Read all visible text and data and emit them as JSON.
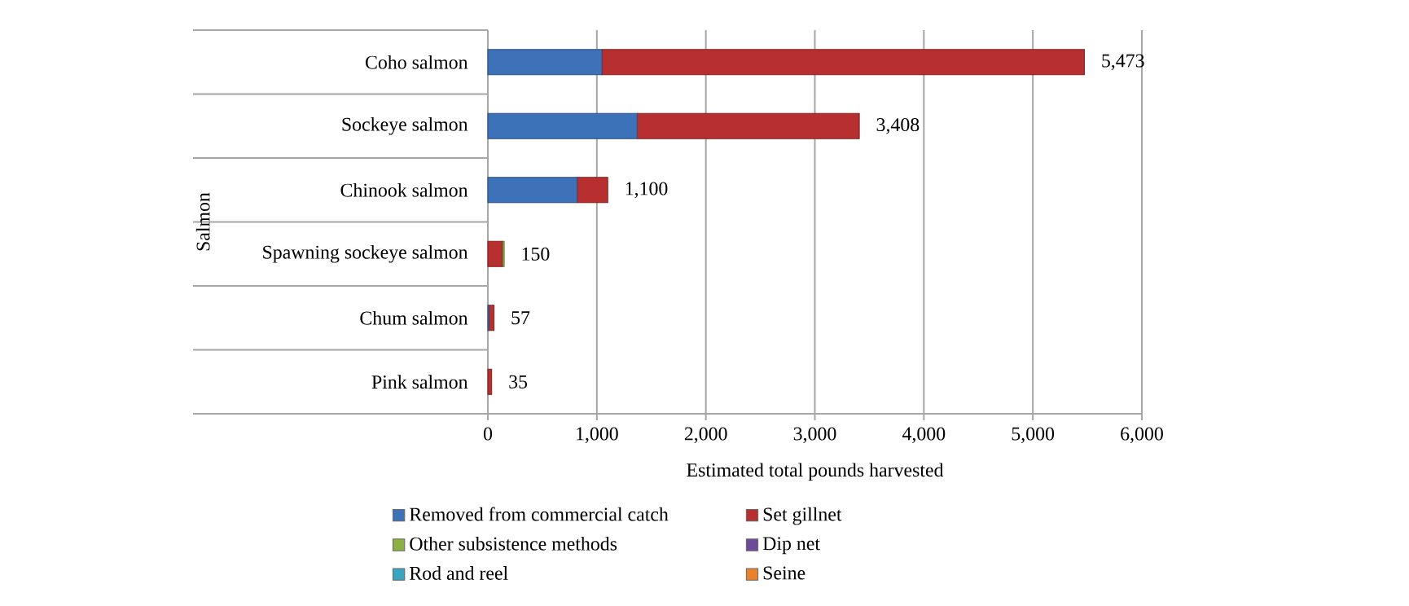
{
  "chart_data": {
    "type": "bar",
    "orientation": "horizontal",
    "stacked": true,
    "xlabel": "Estimated total pounds harvested",
    "ylabel": "Salmon",
    "categories": [
      "Coho salmon",
      "Sockeye salmon",
      "Chinook salmon",
      "Spawning sockeye salmon",
      "Chum salmon",
      "Pink salmon"
    ],
    "series": [
      {
        "name": "Removed from commercial catch",
        "color": "#3d72b8",
        "values": [
          1046,
          1369,
          819,
          0,
          10,
          0
        ]
      },
      {
        "name": "Set gillnet",
        "color": "#b7302f",
        "values": [
          4427,
          2039,
          281,
          132,
          47,
          35
        ]
      },
      {
        "name": "Other subsistence methods",
        "color": "#8db043",
        "values": [
          0,
          0,
          0,
          18,
          0,
          0
        ]
      },
      {
        "name": "Dip net",
        "color": "#6e4a9b",
        "values": [
          0,
          0,
          0,
          0,
          0,
          0
        ]
      },
      {
        "name": "Rod and reel",
        "color": "#3aa5c1",
        "values": [
          0,
          0,
          0,
          0,
          0,
          0
        ]
      },
      {
        "name": "Seine",
        "color": "#e8822b",
        "values": [
          0,
          0,
          0,
          0,
          0,
          0
        ]
      }
    ],
    "totals": [
      "5,473",
      "3,408",
      "1,100",
      "150",
      "57",
      "35"
    ],
    "xlim": [
      0,
      6000
    ],
    "xticks": [
      {
        "value": 0,
        "label": "0"
      },
      {
        "value": 1000,
        "label": "1,000"
      },
      {
        "value": 2000,
        "label": "2,000"
      },
      {
        "value": 3000,
        "label": "3,000"
      },
      {
        "value": 4000,
        "label": "4,000"
      },
      {
        "value": 5000,
        "label": "5,000"
      },
      {
        "value": 6000,
        "label": "6,000"
      }
    ],
    "grid": "x",
    "legend": "bottom"
  }
}
